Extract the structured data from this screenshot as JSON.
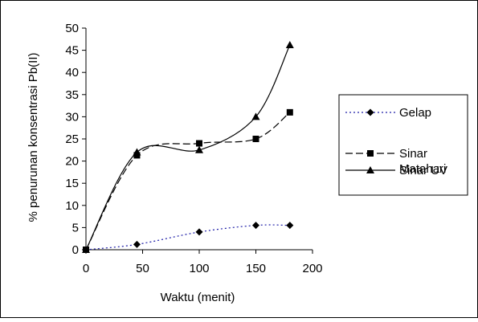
{
  "chart_data": {
    "type": "line",
    "title": "",
    "xlabel": "Waktu (menit)",
    "ylabel": "% penurunan konsentrasi Pb(II)",
    "xlim": [
      0,
      200
    ],
    "ylim": [
      0,
      50
    ],
    "xticks": [
      "0",
      "50",
      "100",
      "150",
      "200"
    ],
    "yticks": [
      "0",
      "5",
      "10",
      "15",
      "20",
      "25",
      "30",
      "35",
      "40",
      "45",
      "50"
    ],
    "grid": false,
    "legend_position": "right",
    "series": [
      {
        "name": "Gelap",
        "marker": "diamond",
        "line_style": "dotted",
        "color": "#1f1fa8",
        "x": [
          0,
          45,
          100,
          150,
          180
        ],
        "y": [
          0,
          1.2,
          4,
          5.5,
          5.5
        ]
      },
      {
        "name": "Sinar Matahari",
        "name_lines": [
          "Sinar",
          "Matahari"
        ],
        "marker": "square",
        "line_style": "dashed",
        "color": "#000000",
        "x": [
          0,
          45,
          100,
          150,
          180
        ],
        "y": [
          0,
          21.3,
          24,
          25,
          31
        ]
      },
      {
        "name": "Sinar UV",
        "marker": "triangle",
        "line_style": "solid",
        "color": "#000000",
        "x": [
          0,
          45,
          100,
          150,
          180
        ],
        "y": [
          0,
          22,
          22.5,
          30,
          46.2
        ]
      }
    ]
  }
}
